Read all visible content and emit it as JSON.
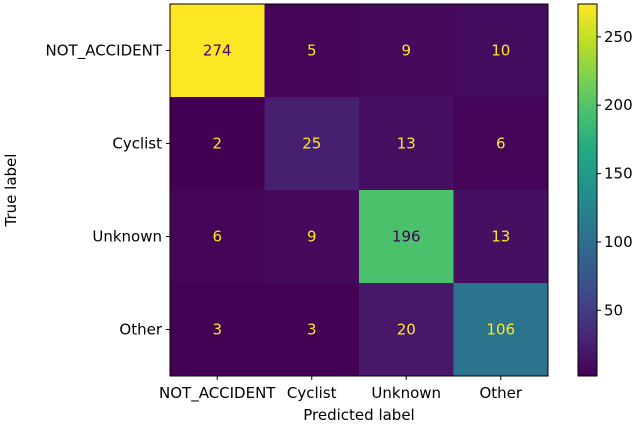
{
  "chart_data": {
    "type": "heatmap",
    "title": "",
    "xlabel": "Predicted label",
    "ylabel": "True label",
    "x_categories": [
      "NOT_ACCIDENT",
      "Cyclist",
      "Unknown",
      "Other"
    ],
    "y_categories": [
      "NOT_ACCIDENT",
      "Cyclist",
      "Unknown",
      "Other"
    ],
    "values": [
      [
        274,
        5,
        9,
        10
      ],
      [
        2,
        25,
        13,
        6
      ],
      [
        6,
        9,
        196,
        13
      ],
      [
        3,
        3,
        20,
        106
      ]
    ],
    "colormap": "viridis",
    "color_range": [
      2,
      274
    ],
    "colorbar_ticks": [
      50,
      100,
      150,
      200,
      250
    ],
    "text_color_dark": "#440154",
    "text_color_light": "#fde725",
    "grid": false
  }
}
